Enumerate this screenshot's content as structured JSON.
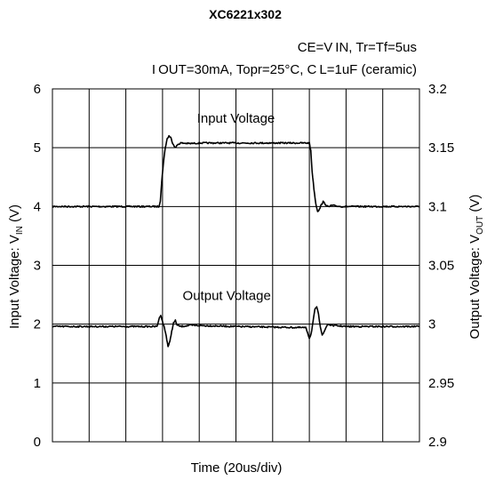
{
  "chart_data": {
    "type": "line",
    "title": "XC6221x302",
    "conditions": {
      "line1": "CE=V IN, Tr=Tf=5us",
      "line2": "I OUT=30mA, Topr=25°C, C L=1uF (ceramic)"
    },
    "xlabel": "Time (20us/div)",
    "ylabel_left": "Input Voltage: V_IN (V)",
    "ylabel_left_main": "Input Voltage: V",
    "ylabel_left_sub": "IN",
    "ylabel_left_tail": " (V)",
    "ylabel_right_main": "Output Voltage: V",
    "ylabel_right_sub": "OUT",
    "ylabel_right_tail": " (V)",
    "xlim": [
      0,
      200
    ],
    "x_divisions": 10,
    "ylim_left": [
      0,
      6
    ],
    "ylim_right": [
      2.9,
      3.2
    ],
    "yticks_left": [
      "0",
      "1",
      "2",
      "3",
      "4",
      "5",
      "6"
    ],
    "yticks_right": [
      "2.9",
      "2.95",
      "3",
      "3.05",
      "3.1",
      "3.15",
      "3.2"
    ],
    "grid": true,
    "series": [
      {
        "name": "Input Voltage",
        "axis": "left",
        "color": "#000000",
        "x": [
          0,
          58,
          58.8,
          59.5,
          60.5,
          61.5,
          62.5,
          63.5,
          64.5,
          65.5,
          67,
          68.5,
          70,
          75,
          80,
          100,
          120,
          140,
          140.8,
          141.5,
          142.5,
          143.5,
          144.5,
          145.5,
          146.5,
          147.5,
          149,
          150.5,
          152,
          157,
          165,
          200
        ],
        "y": [
          4.0,
          4.0,
          4.1,
          4.4,
          4.75,
          5.0,
          5.15,
          5.2,
          5.17,
          5.08,
          5.0,
          5.06,
          5.08,
          5.07,
          5.08,
          5.08,
          5.08,
          5.08,
          4.95,
          4.6,
          4.3,
          4.05,
          3.92,
          3.95,
          4.03,
          4.08,
          4.03,
          3.99,
          4.02,
          4.0,
          4.0,
          4.0
        ]
      },
      {
        "name": "Output Voltage",
        "axis": "right",
        "color": "#000000",
        "x": [
          0,
          57,
          58,
          59,
          60,
          61,
          62,
          63,
          64,
          65,
          66,
          67,
          68,
          70,
          75,
          100,
          138,
          139,
          140,
          141,
          142,
          143,
          144,
          145,
          146,
          147,
          148,
          149,
          150,
          152,
          160,
          200
        ],
        "y": [
          2.998,
          2.998,
          3.004,
          3.008,
          3.002,
          2.997,
          2.99,
          2.981,
          2.985,
          2.994,
          3.001,
          3.003,
          2.999,
          2.998,
          2.999,
          2.998,
          2.997,
          2.993,
          2.988,
          2.992,
          3.002,
          3.012,
          3.015,
          3.008,
          2.998,
          2.991,
          2.993,
          2.997,
          3.0,
          2.999,
          2.998,
          2.998
        ]
      }
    ],
    "annotations": [
      {
        "text": "Input Voltage",
        "series": "Input Voltage"
      },
      {
        "text": "Output Voltage",
        "series": "Output Voltage"
      }
    ]
  }
}
